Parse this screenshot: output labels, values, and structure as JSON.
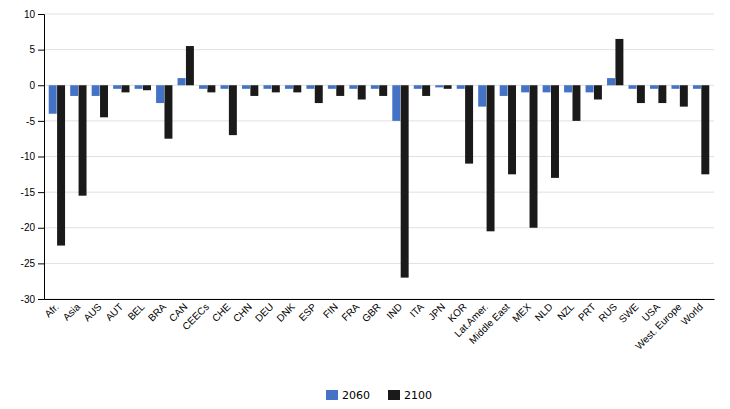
{
  "chart_data": {
    "type": "bar",
    "categories": [
      "Afr.",
      "Asia",
      "AUS",
      "AUT",
      "BEL",
      "BRA",
      "CAN",
      "CEECs",
      "CHE",
      "CHN",
      "DEU",
      "DNK",
      "ESP",
      "FIN",
      "FRA",
      "GBR",
      "IND",
      "ITA",
      "JPN",
      "KOR",
      "Lat.Amer.",
      "Middle East",
      "MEX",
      "NLD",
      "NZL",
      "PRT",
      "RUS",
      "SWE",
      "USA",
      "West. Europe",
      "World"
    ],
    "series": [
      {
        "name": "2060",
        "color": "#4472c4",
        "values": [
          -4.0,
          -1.5,
          -1.5,
          -0.5,
          -0.5,
          -2.5,
          1.0,
          -0.5,
          -0.5,
          -0.5,
          -0.5,
          -0.5,
          -0.5,
          -0.5,
          -0.5,
          -0.5,
          -5.0,
          -0.5,
          -0.3,
          -0.5,
          -3.0,
          -1.5,
          -1.0,
          -1.0,
          -1.0,
          -1.0,
          1.0,
          -0.5,
          -0.5,
          -0.5,
          -0.5
        ]
      },
      {
        "name": "2100",
        "color": "#1a1a1a",
        "values": [
          -22.5,
          -15.5,
          -4.5,
          -1.0,
          -0.7,
          -7.5,
          5.5,
          -1.0,
          -7.0,
          -1.5,
          -1.0,
          -1.0,
          -2.5,
          -1.5,
          -2.0,
          -1.5,
          -27.0,
          -1.5,
          -0.5,
          -11.0,
          -20.5,
          -12.5,
          -20.0,
          -13.0,
          -5.0,
          -2.0,
          6.5,
          -2.5,
          -2.5,
          -3.0,
          -12.5
        ]
      }
    ],
    "ylim": [
      -30,
      10
    ],
    "yticks": [
      -30,
      -25,
      -20,
      -15,
      -10,
      -5,
      0,
      5,
      10
    ],
    "grid": true,
    "legend": "bottom"
  }
}
